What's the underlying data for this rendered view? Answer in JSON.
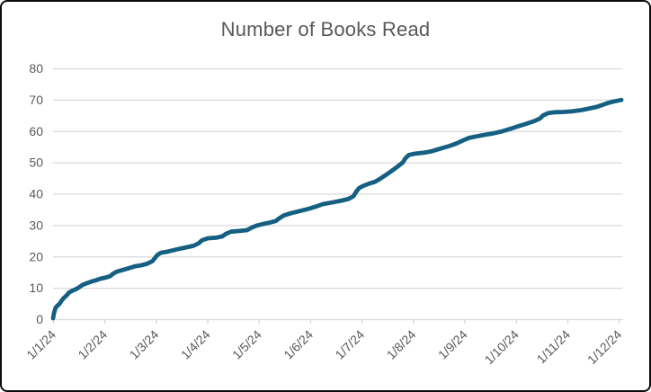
{
  "chart_title": "Number of Books Read",
  "colors": {
    "line": "#156082",
    "gridline": "#d9d9d9",
    "axis_line": "#d9d9d9",
    "tick_label": "#595959",
    "title_text": "#595959",
    "background": "#ffffff",
    "border": "#0d0d0d"
  },
  "chart_data": {
    "type": "line",
    "title": "Number of Books Read",
    "xlabel": "",
    "ylabel": "",
    "x_tick_labels": [
      "1/1/24",
      "1/2/24",
      "1/3/24",
      "1/4/24",
      "1/5/24",
      "1/6/24",
      "1/7/24",
      "1/8/24",
      "1/9/24",
      "1/10/24",
      "1/11/24",
      "1/12/24"
    ],
    "y_ticks": [
      0,
      10,
      20,
      30,
      40,
      50,
      60,
      70,
      80
    ],
    "ylim": [
      0,
      80
    ],
    "x_range_days": [
      1,
      12
    ],
    "grid": "horizontal",
    "legend": "none",
    "series": [
      {
        "points": [
          [
            1.0,
            0.3
          ],
          [
            1.02,
            2.0
          ],
          [
            1.05,
            3.7
          ],
          [
            1.09,
            4.4
          ],
          [
            1.12,
            4.8
          ],
          [
            1.16,
            5.8
          ],
          [
            1.21,
            6.8
          ],
          [
            1.26,
            7.5
          ],
          [
            1.31,
            8.5
          ],
          [
            1.38,
            9.1
          ],
          [
            1.45,
            9.6
          ],
          [
            1.5,
            10.1
          ],
          [
            1.57,
            10.9
          ],
          [
            1.66,
            11.5
          ],
          [
            1.75,
            12.0
          ],
          [
            1.83,
            12.4
          ],
          [
            1.92,
            12.9
          ],
          [
            2.03,
            13.3
          ],
          [
            2.11,
            13.7
          ],
          [
            2.17,
            14.5
          ],
          [
            2.23,
            15.1
          ],
          [
            2.36,
            15.7
          ],
          [
            2.48,
            16.3
          ],
          [
            2.6,
            16.9
          ],
          [
            2.72,
            17.2
          ],
          [
            2.83,
            17.7
          ],
          [
            2.93,
            18.5
          ],
          [
            2.98,
            19.5
          ],
          [
            3.03,
            20.5
          ],
          [
            3.1,
            21.2
          ],
          [
            3.24,
            21.6
          ],
          [
            3.42,
            22.3
          ],
          [
            3.59,
            22.9
          ],
          [
            3.73,
            23.4
          ],
          [
            3.83,
            24.2
          ],
          [
            3.9,
            25.2
          ],
          [
            4.01,
            25.8
          ],
          [
            4.18,
            26.0
          ],
          [
            4.29,
            26.4
          ],
          [
            4.37,
            27.3
          ],
          [
            4.46,
            27.9
          ],
          [
            4.6,
            28.1
          ],
          [
            4.77,
            28.4
          ],
          [
            4.86,
            29.2
          ],
          [
            4.95,
            29.8
          ],
          [
            5.07,
            30.3
          ],
          [
            5.21,
            30.8
          ],
          [
            5.33,
            31.3
          ],
          [
            5.4,
            32.2
          ],
          [
            5.49,
            33.1
          ],
          [
            5.63,
            33.8
          ],
          [
            5.8,
            34.5
          ],
          [
            5.97,
            35.2
          ],
          [
            6.13,
            36.0
          ],
          [
            6.25,
            36.7
          ],
          [
            6.41,
            37.2
          ],
          [
            6.58,
            37.7
          ],
          [
            6.74,
            38.3
          ],
          [
            6.84,
            39.2
          ],
          [
            6.9,
            40.8
          ],
          [
            6.95,
            41.8
          ],
          [
            7.03,
            42.5
          ],
          [
            7.14,
            43.2
          ],
          [
            7.26,
            43.8
          ],
          [
            7.37,
            44.9
          ],
          [
            7.49,
            46.2
          ],
          [
            7.61,
            47.6
          ],
          [
            7.71,
            48.8
          ],
          [
            7.8,
            50.0
          ],
          [
            7.85,
            51.3
          ],
          [
            7.92,
            52.4
          ],
          [
            8.04,
            52.8
          ],
          [
            8.22,
            53.1
          ],
          [
            8.37,
            53.6
          ],
          [
            8.53,
            54.4
          ],
          [
            8.7,
            55.2
          ],
          [
            8.84,
            56.0
          ],
          [
            8.97,
            57.0
          ],
          [
            9.09,
            57.8
          ],
          [
            9.23,
            58.3
          ],
          [
            9.4,
            58.8
          ],
          [
            9.57,
            59.3
          ],
          [
            9.73,
            59.9
          ],
          [
            9.89,
            60.7
          ],
          [
            10.04,
            61.5
          ],
          [
            10.2,
            62.3
          ],
          [
            10.36,
            63.2
          ],
          [
            10.46,
            63.9
          ],
          [
            10.53,
            65.0
          ],
          [
            10.62,
            65.7
          ],
          [
            10.76,
            66.0
          ],
          [
            10.93,
            66.1
          ],
          [
            11.1,
            66.3
          ],
          [
            11.28,
            66.7
          ],
          [
            11.43,
            67.2
          ],
          [
            11.57,
            67.7
          ],
          [
            11.68,
            68.3
          ],
          [
            11.78,
            68.9
          ],
          [
            11.89,
            69.4
          ],
          [
            11.95,
            69.6
          ],
          [
            12.05,
            69.9
          ]
        ]
      }
    ]
  }
}
